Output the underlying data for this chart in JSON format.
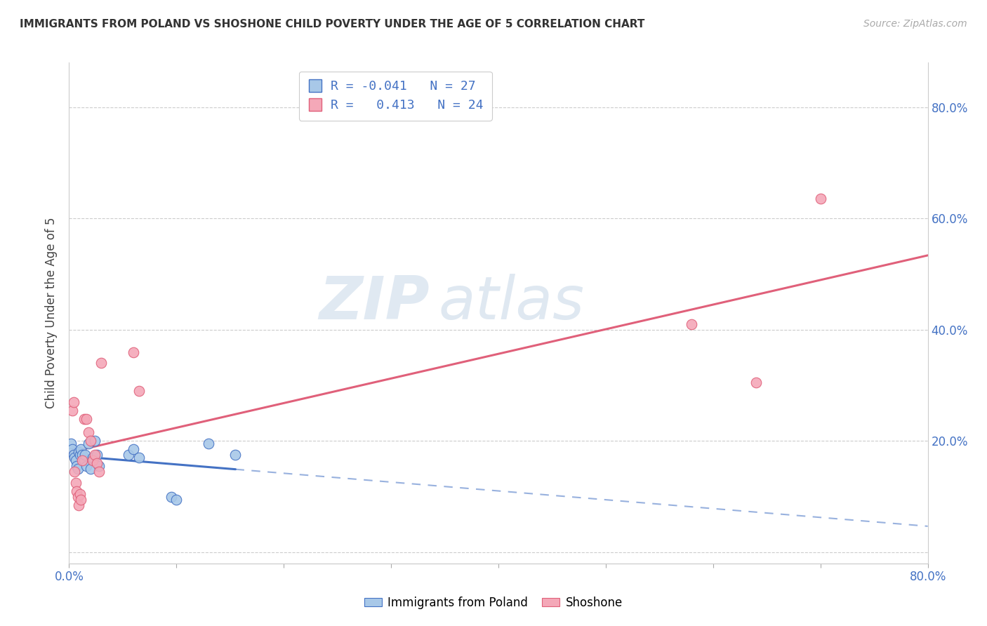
{
  "title": "IMMIGRANTS FROM POLAND VS SHOSHONE CHILD POVERTY UNDER THE AGE OF 5 CORRELATION CHART",
  "source": "Source: ZipAtlas.com",
  "ylabel": "Child Poverty Under the Age of 5",
  "xlim": [
    0.0,
    0.8
  ],
  "ylim": [
    -0.02,
    0.88
  ],
  "yticks": [
    0.0,
    0.2,
    0.4,
    0.6,
    0.8
  ],
  "xticks": [
    0.0,
    0.1,
    0.2,
    0.3,
    0.4,
    0.5,
    0.6,
    0.7,
    0.8
  ],
  "xtick_labels_show": [
    "0.0%",
    "",
    "",
    "",
    "",
    "",
    "",
    "",
    "80.0%"
  ],
  "ytick_labels_right": [
    "",
    "20.0%",
    "40.0%",
    "60.0%",
    "80.0%"
  ],
  "color_poland": "#a8c8e8",
  "color_shoshone": "#f4a8b8",
  "line_color_poland": "#4472c4",
  "line_color_shoshone": "#e0607a",
  "watermark_zip": "ZIP",
  "watermark_atlas": "atlas",
  "poland_x": [
    0.002,
    0.003,
    0.004,
    0.005,
    0.006,
    0.007,
    0.008,
    0.009,
    0.01,
    0.011,
    0.012,
    0.014,
    0.015,
    0.016,
    0.018,
    0.02,
    0.022,
    0.024,
    0.026,
    0.028,
    0.055,
    0.06,
    0.065,
    0.095,
    0.1,
    0.13,
    0.155
  ],
  "poland_y": [
    0.195,
    0.185,
    0.175,
    0.17,
    0.165,
    0.155,
    0.15,
    0.18,
    0.175,
    0.185,
    0.175,
    0.165,
    0.175,
    0.155,
    0.195,
    0.15,
    0.17,
    0.2,
    0.175,
    0.155,
    0.175,
    0.185,
    0.17,
    0.1,
    0.095,
    0.195,
    0.175
  ],
  "shoshone_x": [
    0.003,
    0.004,
    0.005,
    0.006,
    0.007,
    0.008,
    0.009,
    0.01,
    0.011,
    0.012,
    0.014,
    0.016,
    0.018,
    0.02,
    0.022,
    0.024,
    0.026,
    0.028,
    0.03,
    0.06,
    0.065,
    0.58,
    0.64,
    0.7
  ],
  "shoshone_y": [
    0.255,
    0.27,
    0.145,
    0.125,
    0.11,
    0.1,
    0.085,
    0.105,
    0.095,
    0.165,
    0.24,
    0.24,
    0.215,
    0.2,
    0.165,
    0.175,
    0.16,
    0.145,
    0.34,
    0.36,
    0.29,
    0.41,
    0.305,
    0.635
  ],
  "poland_line_solid_end": 0.155,
  "shoshone_line_end": 0.8,
  "legend_texts": [
    "R = -0.041   N = 27",
    "R =   0.413   N = 24"
  ]
}
